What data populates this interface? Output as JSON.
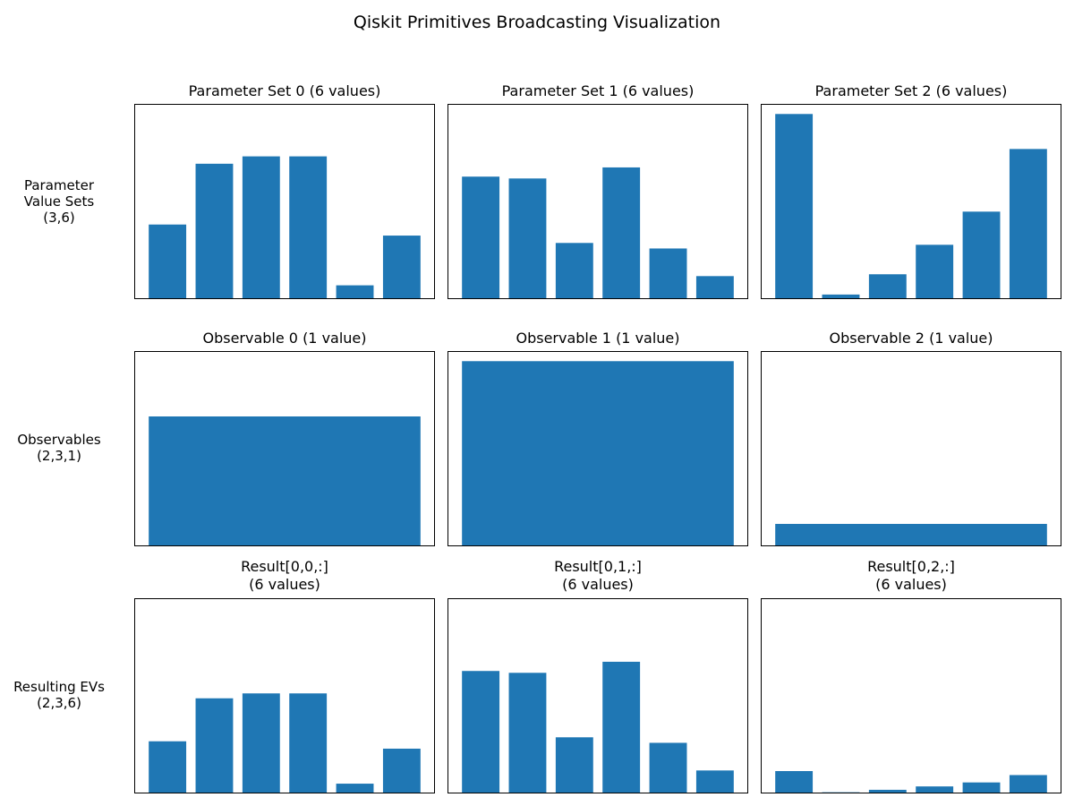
{
  "figure": {
    "title": "Qiskit Primitives Broadcasting Visualization",
    "row_labels": [
      "Parameter\nValue Sets\n(3,6)",
      "Observables\n(2,3,1)",
      "Resulting EVs\n(2,3,6)"
    ],
    "bar_color": "#1f77b4"
  },
  "chart_data": [
    {
      "type": "bar",
      "title": "Parameter Set 0 (6 values)",
      "x": [
        0,
        1,
        2,
        3,
        4,
        5
      ],
      "values": [
        0.4,
        0.73,
        0.77,
        0.77,
        0.07,
        0.34
      ],
      "ylim": [
        0,
        1.05
      ],
      "ticks": "hidden"
    },
    {
      "type": "bar",
      "title": "Parameter Set 1 (6 values)",
      "x": [
        0,
        1,
        2,
        3,
        4,
        5
      ],
      "values": [
        0.66,
        0.65,
        0.3,
        0.71,
        0.27,
        0.12
      ],
      "ylim": [
        0,
        1.05
      ],
      "ticks": "hidden"
    },
    {
      "type": "bar",
      "title": "Parameter Set 2 (6 values)",
      "x": [
        0,
        1,
        2,
        3,
        4,
        5
      ],
      "values": [
        1.0,
        0.02,
        0.13,
        0.29,
        0.47,
        0.81
      ],
      "ylim": [
        0,
        1.05
      ],
      "ticks": "hidden"
    },
    {
      "type": "bar",
      "title": "Observable 0 (1 value)",
      "x": [
        0
      ],
      "values": [
        0.42
      ],
      "ylim": [
        0,
        0.63
      ],
      "ticks": "hidden"
    },
    {
      "type": "bar",
      "title": "Observable 1 (1 value)",
      "x": [
        0
      ],
      "values": [
        0.6
      ],
      "ylim": [
        0,
        0.63
      ],
      "ticks": "hidden"
    },
    {
      "type": "bar",
      "title": "Observable 2 (1 value)",
      "x": [
        0
      ],
      "values": [
        0.07
      ],
      "ylim": [
        0,
        0.63
      ],
      "ticks": "hidden"
    },
    {
      "type": "bar",
      "title": "Result[0,0,:]\n(6 values)",
      "x": [
        0,
        1,
        2,
        3,
        4,
        5
      ],
      "values": [
        0.167,
        0.307,
        0.323,
        0.323,
        0.029,
        0.143
      ],
      "ylim": [
        0,
        0.63
      ],
      "ticks": "hidden"
    },
    {
      "type": "bar",
      "title": "Result[0,1,:]\n(6 values)",
      "x": [
        0,
        1,
        2,
        3,
        4,
        5
      ],
      "values": [
        0.396,
        0.39,
        0.18,
        0.426,
        0.162,
        0.072
      ],
      "ylim": [
        0,
        0.63
      ],
      "ticks": "hidden"
    },
    {
      "type": "bar",
      "title": "Result[0,2,:]\n(6 values)",
      "x": [
        0,
        1,
        2,
        3,
        4,
        5
      ],
      "values": [
        0.07,
        0.001,
        0.009,
        0.02,
        0.033,
        0.057
      ],
      "ylim": [
        0,
        0.63
      ],
      "ticks": "hidden"
    }
  ]
}
